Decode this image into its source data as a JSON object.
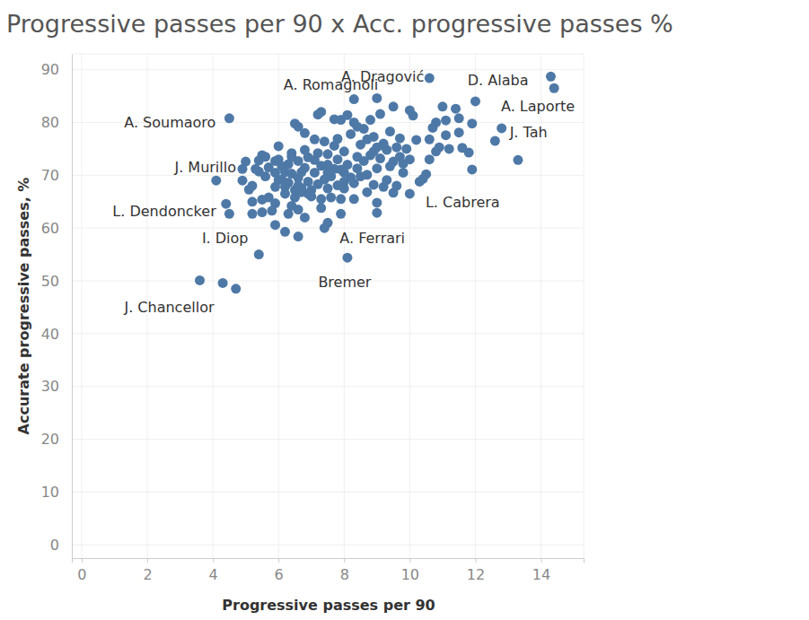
{
  "chart_data": {
    "type": "scatter",
    "title": "Progressive passes per 90 x Acc. progressive passes %",
    "x_label": "Progressive passes per 90",
    "y_label": "Accurate progressive passes, %",
    "color": "#4e79a7",
    "marker": "circle",
    "grid": true,
    "xlim": [
      -0.3,
      15.3
    ],
    "ylim": [
      -2.5,
      93
    ],
    "xticks": [
      0,
      2,
      4,
      6,
      8,
      10,
      12,
      14
    ],
    "yticks": [
      0,
      10,
      20,
      30,
      40,
      50,
      60,
      70,
      80,
      90
    ],
    "x": [
      3.6,
      4.3,
      4.7,
      5.4,
      8.1,
      6.6,
      6.2,
      7.4,
      5.9,
      7.5,
      4.1,
      4.4,
      4.5,
      4.5,
      4.9,
      5.0,
      4.9,
      5.1,
      5.2,
      5.2,
      5.2,
      5.4,
      5.5,
      5.4,
      5.5,
      5.5,
      5.6,
      5.7,
      5.7,
      5.8,
      5.9,
      5.9,
      5.9,
      5.9,
      6.0,
      6.0,
      6.1,
      6.1,
      6.2,
      6.2,
      6.3,
      6.3,
      6.3,
      6.4,
      6.4,
      6.4,
      6.5,
      6.5,
      6.5,
      6.6,
      6.6,
      6.6,
      6.6,
      6.6,
      6.7,
      6.7,
      6.7,
      6.8,
      6.8,
      6.8,
      6.9,
      6.9,
      7.0,
      7.0,
      7.1,
      7.1,
      7.2,
      7.2,
      7.2,
      7.3,
      7.3,
      7.3,
      7.3,
      7.4,
      7.4,
      7.5,
      7.5,
      7.5,
      7.6,
      7.6,
      7.7,
      7.7,
      7.7,
      7.8,
      7.8,
      7.8,
      7.9,
      7.9,
      7.9,
      8.0,
      8.0,
      8.0,
      8.1,
      8.1,
      8.2,
      8.2,
      8.3,
      8.3,
      8.3,
      8.3,
      8.4,
      8.4,
      8.5,
      8.5,
      8.6,
      8.6,
      8.7,
      8.7,
      8.7,
      8.8,
      8.8,
      8.9,
      8.9,
      9.0,
      9.0,
      9.0,
      9.0,
      9.0,
      9.1,
      9.1,
      9.2,
      9.2,
      9.3,
      9.3,
      9.4,
      9.4,
      9.5,
      9.5,
      9.5,
      9.6,
      9.6,
      9.7,
      9.8,
      9.8,
      9.9,
      10.0,
      10.0,
      10.0,
      10.1,
      10.2,
      10.4,
      10.5,
      10.6,
      10.6,
      10.6,
      10.7,
      10.8,
      10.8,
      10.9,
      11.0,
      11.1,
      11.1,
      11.2,
      11.4,
      11.5,
      11.5,
      11.6,
      11.8,
      11.9,
      11.9,
      12.0,
      12.6,
      12.8,
      13.3,
      14.3,
      14.4,
      5.3,
      5.6,
      6.0,
      6.2,
      6.9,
      7.1,
      7.9,
      8.4,
      8.9,
      9.2,
      9.7,
      10.3,
      8.0,
      7.5,
      6.8,
      6.4
    ],
    "values": [
      50.1,
      49.6,
      48.5,
      55,
      54.4,
      58.4,
      59.3,
      60,
      60.6,
      61,
      69,
      64.6,
      62.7,
      80.8,
      71.2,
      72.6,
      69.0,
      67.3,
      68,
      65,
      62.7,
      72.8,
      73.8,
      70.7,
      65.4,
      63,
      69.8,
      65.8,
      71.5,
      63.3,
      64.7,
      67.8,
      70.5,
      72.7,
      75.5,
      73,
      69.2,
      71.7,
      66.5,
      67.8,
      68.6,
      72.1,
      62.7,
      64.2,
      70.3,
      74.2,
      79.8,
      67.2,
      65.8,
      63.5,
      68,
      69.5,
      72.7,
      79.2,
      66.8,
      70.6,
      67.6,
      62,
      78,
      71.4,
      68.8,
      73.4,
      67.2,
      66,
      70.5,
      76.8,
      68.3,
      74.2,
      81.5,
      82,
      65.5,
      71.8,
      63.8,
      76.4,
      69.2,
      74,
      67.5,
      72,
      69.8,
      65.8,
      80.6,
      75.6,
      71.2,
      73,
      68.1,
      76.9,
      62.7,
      65.5,
      80.5,
      70.5,
      67.5,
      74.5,
      81.4,
      72,
      69.6,
      77.8,
      84.4,
      68.5,
      65.5,
      80,
      73.5,
      71.3,
      75.8,
      69.8,
      78.8,
      72.7,
      66.8,
      76.8,
      70.1,
      73.8,
      80.5,
      68.2,
      77.3,
      84.6,
      64.8,
      62.9,
      71.3,
      75.3,
      81.6,
      73.2,
      67.8,
      76,
      69.1,
      74.8,
      78.3,
      71.7,
      83,
      66.7,
      72.6,
      75.3,
      68,
      77,
      72.2,
      70.5,
      75,
      82.3,
      66.5,
      73,
      81.3,
      76.7,
      69.3,
      70.2,
      76.8,
      73,
      88.4,
      79,
      80,
      74.5,
      75.3,
      83,
      80.4,
      77.6,
      75,
      82.6,
      78.1,
      80.8,
      75.2,
      74.3,
      71.1,
      79.8,
      84,
      76.5,
      78.9,
      72.9,
      88.7,
      86.5,
      71.2,
      73.5,
      69.1,
      70.6,
      66.5,
      72.9,
      71.1,
      79.2,
      74.5,
      75.6,
      73.5,
      68.8,
      68.8,
      70.5,
      74.8,
      73.5
    ],
    "annotations": [
      {
        "text": "A. Romagnoli",
        "x": 8.3,
        "y": 84.4
      },
      {
        "text": "A. Dragović",
        "x": 10.6,
        "y": 88.4
      },
      {
        "text": "D. Alaba",
        "x": 14.3,
        "y": 88.7
      },
      {
        "text": "A. Laporte",
        "x": 14.4,
        "y": 86.5
      },
      {
        "text": "J. Tah",
        "x": 12.8,
        "y": 78.9
      },
      {
        "text": "A. Soumaoro",
        "x": 4.5,
        "y": 80.8
      },
      {
        "text": "J. Murillo",
        "x": 4.9,
        "y": 71.2
      },
      {
        "text": "L. Dendoncker",
        "x": 4.4,
        "y": 64.6
      },
      {
        "text": "I. Diop",
        "x": 6.2,
        "y": 59.3
      },
      {
        "text": "A. Ferrari",
        "x": 7.4,
        "y": 60
      },
      {
        "text": "L. Cabrera",
        "x": 10.4,
        "y": 69.3
      },
      {
        "text": "Bremer",
        "x": 8.1,
        "y": 54.4
      },
      {
        "text": "J. Chancellor",
        "x": 3.6,
        "y": 50.1
      }
    ]
  }
}
